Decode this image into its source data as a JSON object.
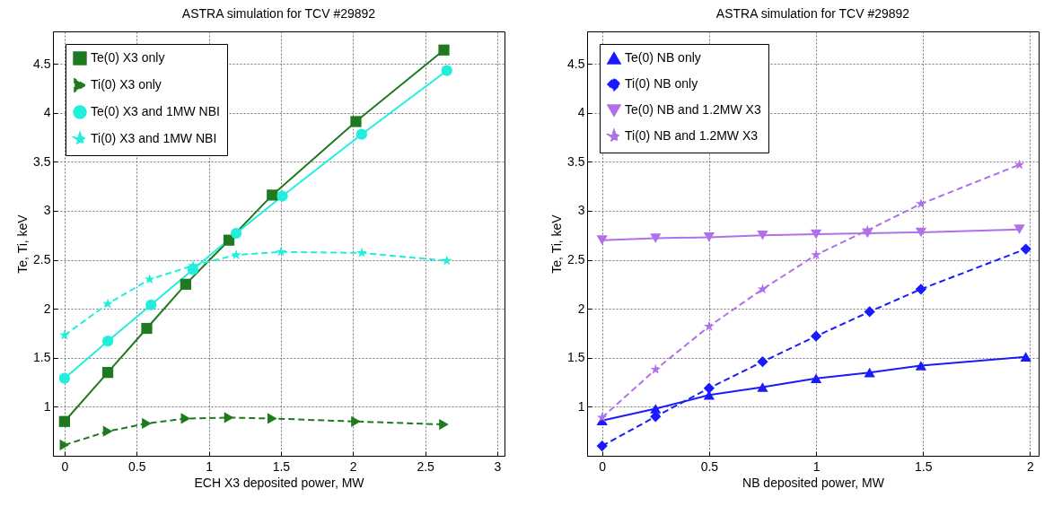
{
  "chart_data": [
    {
      "type": "line",
      "title": "ASTRA simulation for TCV #29892",
      "xlabel": "ECH X3 deposited power, MW",
      "ylabel": "Te, Ti, keV",
      "xlim": [
        -0.08,
        3.05
      ],
      "ylim": [
        0.5,
        4.83
      ],
      "xticks": [
        0,
        0.5,
        1,
        1.5,
        2,
        2.5,
        3
      ],
      "yticks": [
        1,
        1.5,
        2,
        2.5,
        3,
        3.5,
        4,
        4.5
      ],
      "grid": true,
      "legend": "top left",
      "series": [
        {
          "name": "Te(0) X3 only",
          "color": "#1f7a1f",
          "marker": "square",
          "line_style": "solid",
          "x": [
            0,
            0.3,
            0.57,
            0.84,
            1.14,
            1.44,
            2.02,
            2.63
          ],
          "values": [
            0.85,
            1.35,
            1.8,
            2.25,
            2.7,
            3.16,
            3.91,
            4.64
          ]
        },
        {
          "name": "Ti(0) X3 only",
          "color": "#1f7a1f",
          "marker": "triangle-right",
          "line_style": "dashed",
          "x": [
            0,
            0.3,
            0.57,
            0.84,
            1.14,
            1.44,
            2.02,
            2.63
          ],
          "values": [
            0.61,
            0.75,
            0.83,
            0.88,
            0.89,
            0.88,
            0.85,
            0.82
          ]
        },
        {
          "name": "Te(0) X3 and 1MW NBI",
          "color": "#22eedd",
          "marker": "circle",
          "line_style": "solid",
          "x": [
            0,
            0.3,
            0.6,
            0.89,
            1.19,
            1.51,
            2.06,
            2.65
          ],
          "values": [
            1.29,
            1.67,
            2.04,
            2.4,
            2.77,
            3.15,
            3.78,
            4.43
          ]
        },
        {
          "name": "Ti(0) X3 and 1MW NBI",
          "color": "#22eedd",
          "marker": "star",
          "line_style": "dashed",
          "x": [
            0,
            0.3,
            0.59,
            0.89,
            1.19,
            1.5,
            2.06,
            2.65
          ],
          "values": [
            1.73,
            2.05,
            2.3,
            2.44,
            2.55,
            2.58,
            2.57,
            2.49
          ]
        }
      ]
    },
    {
      "type": "line",
      "title": "ASTRA simulation for TCV #29892",
      "xlabel": "NB deposited power, MW",
      "ylabel": "Te, Ti, keV",
      "xlim": [
        -0.07,
        2.04
      ],
      "ylim": [
        0.5,
        4.83
      ],
      "xticks": [
        0,
        0.5,
        1,
        1.5,
        2
      ],
      "yticks": [
        1,
        1.5,
        2,
        2.5,
        3,
        3.5,
        4,
        4.5
      ],
      "grid": true,
      "legend": "top left",
      "series": [
        {
          "name": "Te(0) NB only",
          "color": "#1a1aff",
          "marker": "triangle",
          "line_style": "solid",
          "x": [
            0,
            0.25,
            0.5,
            0.75,
            1,
            1.25,
            1.49,
            1.98
          ],
          "values": [
            0.86,
            0.98,
            1.12,
            1.2,
            1.29,
            1.35,
            1.42,
            1.51
          ]
        },
        {
          "name": "Ti(0) NB only",
          "color": "#1a1aff",
          "marker": "diamond",
          "line_style": "dashed",
          "x": [
            0,
            0.25,
            0.5,
            0.75,
            1,
            1.25,
            1.49,
            1.98
          ],
          "values": [
            0.6,
            0.9,
            1.19,
            1.46,
            1.72,
            1.97,
            2.2,
            2.61
          ]
        },
        {
          "name": "Te(0) NB and 1.2MW X3",
          "color": "#b070e8",
          "marker": "triangle-down",
          "line_style": "solid",
          "x": [
            0,
            0.25,
            0.5,
            0.75,
            1,
            1.24,
            1.49,
            1.95
          ],
          "values": [
            2.7,
            2.72,
            2.73,
            2.75,
            2.76,
            2.77,
            2.78,
            2.81
          ]
        },
        {
          "name": "Ti(0) NB and 1.2MW X3",
          "color": "#b070e8",
          "marker": "star",
          "line_style": "dashed",
          "x": [
            0,
            0.25,
            0.5,
            0.75,
            1,
            1.24,
            1.49,
            1.95
          ],
          "values": [
            0.89,
            1.38,
            1.82,
            2.2,
            2.55,
            2.8,
            3.07,
            3.47
          ]
        }
      ]
    }
  ]
}
